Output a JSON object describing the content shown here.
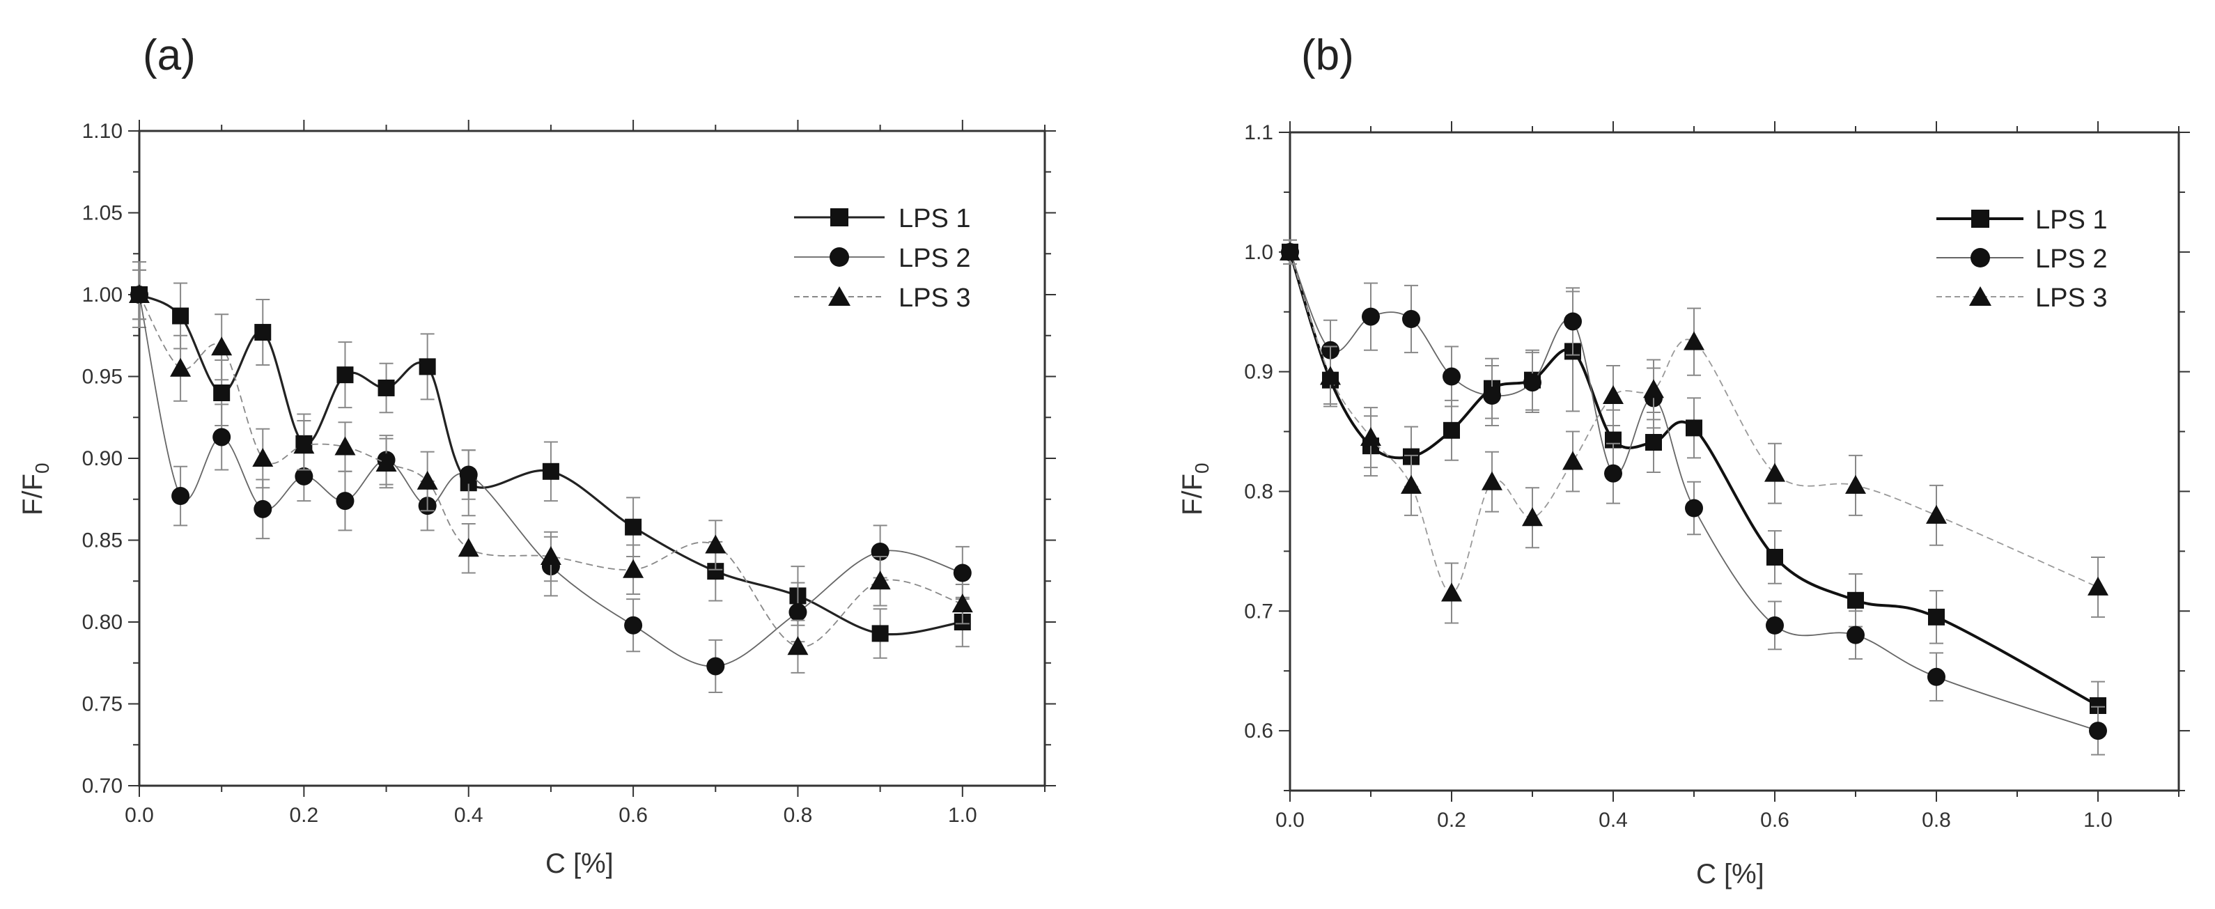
{
  "chart_data": [
    {
      "type": "line",
      "panel_label": "(a)",
      "xlabel": "C [%]",
      "ylabel": "F/F",
      "ylabel_sub": "0",
      "xlim": [
        0.0,
        1.1
      ],
      "ylim": [
        0.7,
        1.1
      ],
      "xticks": [
        0.0,
        0.2,
        0.4,
        0.6,
        0.8,
        1.0
      ],
      "xtick_labels": [
        "0.0",
        "0.2",
        "0.4",
        "0.6",
        "0.8",
        "1.0"
      ],
      "yticks": [
        0.7,
        0.75,
        0.8,
        0.85,
        0.9,
        0.95,
        1.0,
        1.05,
        1.1
      ],
      "ytick_labels": [
        "0.70",
        "0.75",
        "0.80",
        "0.85",
        "0.90",
        "0.95",
        "1.00",
        "1.05",
        "1.10"
      ],
      "legend_position": "top-right",
      "grid": false,
      "x": [
        0.0,
        0.05,
        0.1,
        0.15,
        0.2,
        0.25,
        0.3,
        0.35,
        0.4,
        0.5,
        0.6,
        0.7,
        0.8,
        0.9,
        1.0
      ],
      "series": [
        {
          "name": "LPS 1",
          "marker": "square",
          "values": [
            1.0,
            0.987,
            0.94,
            0.977,
            0.909,
            0.951,
            0.943,
            0.956,
            0.885,
            0.892,
            0.858,
            0.831,
            0.816,
            0.793,
            0.8
          ],
          "errors": [
            0.02,
            0.02,
            0.02,
            0.02,
            0.018,
            0.02,
            0.015,
            0.02,
            0.02,
            0.018,
            0.018,
            0.018,
            0.018,
            0.015,
            0.015
          ]
        },
        {
          "name": "LPS 2",
          "marker": "circle",
          "values": [
            1.0,
            0.877,
            0.913,
            0.869,
            0.889,
            0.874,
            0.899,
            0.871,
            0.89,
            0.834,
            0.798,
            0.773,
            0.806,
            0.843,
            0.83
          ],
          "errors": [
            0.015,
            0.018,
            0.02,
            0.018,
            0.015,
            0.018,
            0.015,
            0.015,
            0.015,
            0.018,
            0.016,
            0.016,
            0.018,
            0.016,
            0.016
          ]
        },
        {
          "name": "LPS 3",
          "marker": "triangle",
          "values": [
            1.0,
            0.955,
            0.968,
            0.9,
            0.908,
            0.907,
            0.897,
            0.886,
            0.845,
            0.84,
            0.832,
            0.847,
            0.785,
            0.825,
            0.811
          ],
          "errors": [
            0.015,
            0.02,
            0.02,
            0.018,
            0.015,
            0.015,
            0.015,
            0.018,
            0.015,
            0.015,
            0.015,
            0.015,
            0.016,
            0.015,
            0.012
          ]
        }
      ]
    },
    {
      "type": "line",
      "panel_label": "(b)",
      "xlabel": "C [%]",
      "ylabel": "F/F",
      "ylabel_sub": "0",
      "xlim": [
        0.0,
        1.1
      ],
      "ylim": [
        0.55,
        1.1
      ],
      "xticks": [
        0.0,
        0.2,
        0.4,
        0.6,
        0.8,
        1.0
      ],
      "xtick_labels": [
        "0.0",
        "0.2",
        "0.4",
        "0.6",
        "0.8",
        "1.0"
      ],
      "yticks": [
        0.6,
        0.7,
        0.8,
        0.9,
        1.0,
        1.1
      ],
      "ytick_labels": [
        "0.6",
        "0.7",
        "0.8",
        "0.9",
        "1.0",
        "1.1"
      ],
      "legend_position": "top-right",
      "grid": false,
      "x": [
        0.0,
        0.05,
        0.1,
        0.15,
        0.2,
        0.25,
        0.3,
        0.35,
        0.4,
        0.45,
        0.5,
        0.6,
        0.7,
        0.8,
        1.0
      ],
      "series": [
        {
          "name": "LPS 1",
          "marker": "square",
          "values": [
            1.0,
            0.893,
            0.838,
            0.829,
            0.851,
            0.886,
            0.893,
            0.917,
            0.843,
            0.841,
            0.853,
            0.745,
            0.709,
            0.695,
            0.621
          ],
          "errors": [
            0.01,
            0.02,
            0.025,
            0.025,
            0.025,
            0.025,
            0.025,
            0.05,
            0.025,
            0.025,
            0.025,
            0.022,
            0.022,
            0.022,
            0.02
          ]
        },
        {
          "name": "LPS 2",
          "marker": "circle",
          "values": [
            1.0,
            0.918,
            0.946,
            0.944,
            0.896,
            0.88,
            0.891,
            0.942,
            0.815,
            0.878,
            0.786,
            0.688,
            0.68,
            0.645,
            0.6
          ],
          "errors": [
            0.01,
            0.025,
            0.028,
            0.028,
            0.025,
            0.025,
            0.025,
            0.028,
            0.025,
            0.025,
            0.022,
            0.02,
            0.02,
            0.02,
            0.02
          ]
        },
        {
          "name": "LPS 3",
          "marker": "triangle",
          "values": [
            1.0,
            0.896,
            0.845,
            0.805,
            0.715,
            0.808,
            0.778,
            0.825,
            0.88,
            0.885,
            0.925,
            0.815,
            0.805,
            0.78,
            0.72
          ],
          "errors": [
            0.01,
            0.025,
            0.025,
            0.025,
            0.025,
            0.025,
            0.025,
            0.025,
            0.025,
            0.025,
            0.028,
            0.025,
            0.025,
            0.025,
            0.025
          ]
        }
      ]
    }
  ],
  "colors": {
    "axis": "#333333",
    "markers": "#111111",
    "lps1_line": "#222222",
    "lps2_line": "#555555",
    "lps3_line": "#777777",
    "error_bars": "#888888"
  }
}
